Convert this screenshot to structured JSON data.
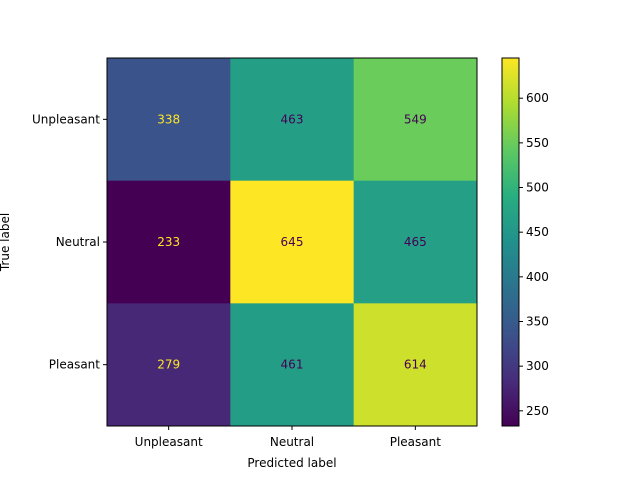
{
  "chart_data": {
    "type": "heatmap",
    "title": "",
    "xlabel": "Predicted label",
    "ylabel": "True label",
    "x_categories": [
      "Unpleasant",
      "Neutral",
      "Pleasant"
    ],
    "y_categories": [
      "Unpleasant",
      "Neutral",
      "Pleasant"
    ],
    "values": [
      [
        338,
        463,
        549
      ],
      [
        233,
        645,
        465
      ],
      [
        279,
        461,
        614
      ]
    ],
    "colormap": "viridis",
    "vmin": 233,
    "vmax": 645,
    "colorbar_ticks": [
      250,
      300,
      350,
      400,
      450,
      500,
      550,
      600
    ],
    "colorbar_labels": [
      "250",
      "300",
      "350",
      "400",
      "450",
      "500",
      "550",
      "600"
    ],
    "text_color_light": "#fde725",
    "text_color_dark": "#440154",
    "legend": "colorbar-right"
  }
}
